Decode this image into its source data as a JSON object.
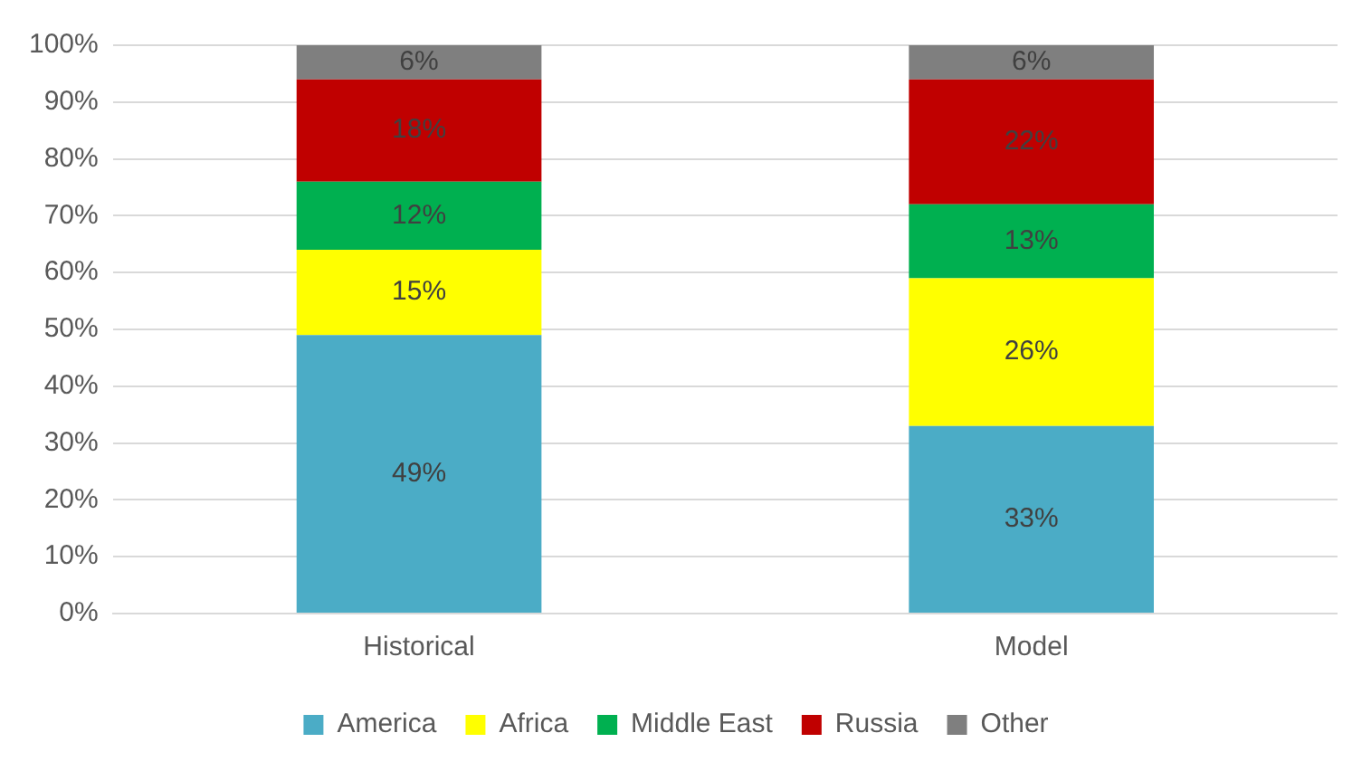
{
  "chart_data": {
    "type": "bar",
    "stacked": true,
    "categories": [
      "Historical",
      "Model"
    ],
    "series": [
      {
        "name": "America",
        "color": "#4bacc6",
        "values": [
          49,
          33
        ],
        "value_labels": [
          "49%",
          "33%"
        ]
      },
      {
        "name": "Africa",
        "color": "#ffff00",
        "values": [
          15,
          26
        ],
        "value_labels": [
          "15%",
          "26%"
        ]
      },
      {
        "name": "Middle East",
        "color": "#00b050",
        "values": [
          12,
          13
        ],
        "value_labels": [
          "12%",
          "13%"
        ]
      },
      {
        "name": "Russia",
        "color": "#c00000",
        "values": [
          18,
          22
        ],
        "value_labels": [
          "18%",
          "22%"
        ]
      },
      {
        "name": "Other",
        "color": "#7f7f7f",
        "values": [
          6,
          6
        ],
        "value_labels": [
          "6%",
          "6%"
        ]
      }
    ],
    "ylim": [
      0,
      100
    ],
    "yticks": [
      {
        "value": 0,
        "label": "0%"
      },
      {
        "value": 10,
        "label": "10%"
      },
      {
        "value": 20,
        "label": "20%"
      },
      {
        "value": 30,
        "label": "30%"
      },
      {
        "value": 40,
        "label": "40%"
      },
      {
        "value": 50,
        "label": "50%"
      },
      {
        "value": 60,
        "label": "60%"
      },
      {
        "value": 70,
        "label": "70%"
      },
      {
        "value": 80,
        "label": "80%"
      },
      {
        "value": 90,
        "label": "90%"
      },
      {
        "value": 100,
        "label": "100%"
      }
    ],
    "grid": "y",
    "legend": "bottom"
  }
}
